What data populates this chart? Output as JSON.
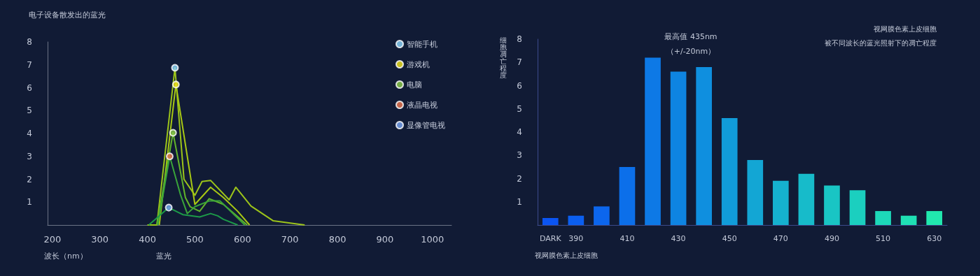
{
  "chart_data": [
    {
      "type": "line",
      "title": "电子设备散发出的蓝光",
      "xlabel": "波长（nm）",
      "annotations": [
        "蓝光"
      ],
      "xlim": [
        190,
        1040
      ],
      "xticks": [
        200,
        300,
        400,
        500,
        600,
        700,
        800,
        900,
        1000
      ],
      "ylim": [
        0,
        8
      ],
      "yticks": [
        1,
        2,
        3,
        4,
        5,
        6,
        7,
        8
      ],
      "grid": false,
      "legend": "top right",
      "marker": "none",
      "line_style": "solid",
      "series": [
        {
          "color": "#9cc41a",
          "x": [
            400,
            420,
            458,
            477,
            500,
            515,
            533,
            572,
            586,
            618,
            665,
            731
          ],
          "values": [
            0,
            0,
            6.87,
            2.0,
            1.3,
            1.9,
            1.95,
            1.1,
            1.65,
            0.83,
            0.18,
            0
          ]
        },
        {
          "color": "#a8c814",
          "x": [
            425,
            460,
            500,
            533,
            560,
            590,
            615
          ],
          "values": [
            0,
            6.14,
            0.9,
            1.65,
            1.2,
            0.6,
            0
          ]
        },
        {
          "color": "#62b42a",
          "x": [
            420,
            454,
            480,
            490,
            510,
            530,
            560,
            610
          ],
          "values": [
            0,
            4.03,
            1.2,
            0.8,
            0.6,
            1.15,
            0.9,
            0
          ]
        },
        {
          "color": "#3aa43a",
          "x": [
            422,
            447,
            470,
            484,
            500,
            530,
            553,
            605
          ],
          "values": [
            0,
            3.0,
            1.3,
            0.5,
            0.8,
            1.05,
            1.05,
            0
          ]
        },
        {
          "color": "#1c9a48",
          "x": [
            403,
            445,
            475,
            510,
            533,
            548,
            560,
            590
          ],
          "values": [
            0,
            0.76,
            0.45,
            0.35,
            0.5,
            0.4,
            0.25,
            0
          ]
        },
        {
          "type": "scatter",
          "marker": "circle",
          "name": "智能手机",
          "color": "#8fd8ff",
          "x": [
            458
          ],
          "values": [
            6.87
          ]
        },
        {
          "type": "scatter",
          "marker": "circle",
          "name": "游戏机",
          "color": "#f5e81c",
          "x": [
            460
          ],
          "values": [
            6.14
          ]
        },
        {
          "type": "scatter",
          "marker": "circle",
          "name": "电脑",
          "color": "#8fd04a",
          "x": [
            454
          ],
          "values": [
            4.03
          ]
        },
        {
          "type": "scatter",
          "marker": "circle",
          "name": "液晶电视",
          "color": "#f07850",
          "x": [
            447
          ],
          "values": [
            3.0
          ]
        },
        {
          "type": "scatter",
          "marker": "circle",
          "name": "显像管电视",
          "color": "#7aa8f5",
          "x": [
            445
          ],
          "values": [
            0.76
          ]
        }
      ]
    },
    {
      "type": "bar",
      "title": "视网膜色素上皮细胞",
      "subtitle": "被不同波长的蓝光照射下的凋亡程度",
      "xlabel": "视网膜色素上皮细胞",
      "ylabel": "细胞凋亡程度",
      "annotations": [
        "最高值 435nm",
        "（+/-20nm）"
      ],
      "categories": [
        "DARK",
        "390",
        null,
        "410",
        null,
        "430",
        null,
        "450",
        null,
        "470",
        null,
        "490",
        null,
        "510",
        null,
        "630"
      ],
      "values": [
        0.3,
        0.4,
        0.8,
        2.5,
        7.2,
        6.6,
        6.8,
        4.6,
        2.8,
        1.9,
        2.2,
        1.7,
        1.5,
        0.6,
        0.4,
        0.6
      ],
      "colors": [
        "#0b55f2",
        "#0b5ff0",
        "#0c66ed",
        "#0c6fea",
        "#0d79e6",
        "#0e84e2",
        "#0f8fdf",
        "#119cd9",
        "#13a6d4",
        "#15b1cf",
        "#17bbca",
        "#19c5c4",
        "#1bcfbf",
        "#1dd8b9",
        "#1fe0b4",
        "#21e8ae"
      ],
      "ylim": [
        0,
        8
      ],
      "yticks": [
        1,
        2,
        3,
        4,
        5,
        6,
        7,
        8
      ],
      "grid": false
    }
  ]
}
